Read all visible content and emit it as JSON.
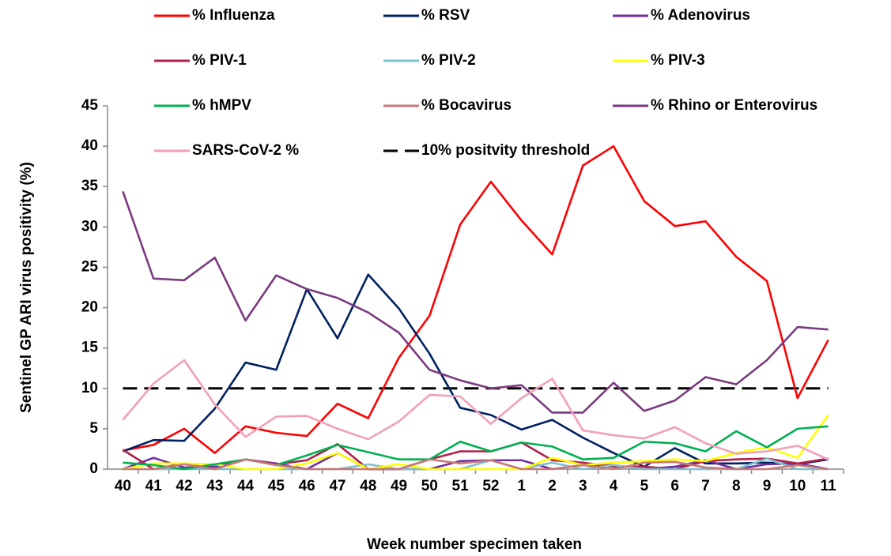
{
  "chart_data": {
    "type": "line",
    "y_label": "Sentinel GP ARI virus positivity (%)",
    "x_label": "Week number specimen taken",
    "categories": [
      "40",
      "41",
      "42",
      "43",
      "44",
      "45",
      "46",
      "47",
      "48",
      "49",
      "50",
      "51",
      "52",
      "1",
      "2",
      "3",
      "4",
      "5",
      "6",
      "7",
      "8",
      "9",
      "10",
      "11"
    ],
    "ylim": [
      0,
      45
    ],
    "yticks": [
      0,
      5,
      10,
      15,
      20,
      25,
      30,
      35,
      40,
      45
    ],
    "series": [
      {
        "name": "% Influenza",
        "color": "#ff0000",
        "values": [
          2.3,
          3,
          5,
          2,
          5.3,
          4.5,
          4.1,
          8.1,
          6.3,
          13.8,
          19,
          30.3,
          35.6,
          30.8,
          26.6,
          37.6,
          40,
          33.2,
          30.1,
          30.7,
          26.3,
          23.3,
          8.8,
          16
        ]
      },
      {
        "name": "% RSV",
        "color": "#002060",
        "values": [
          2.2,
          3.6,
          3.5,
          7.5,
          13.2,
          12.3,
          22.3,
          16.2,
          24.1,
          19.9,
          14.3,
          7.6,
          6.7,
          4.9,
          6.1,
          3.9,
          2,
          0.3,
          2.6,
          0.7,
          0.7,
          0.8,
          0.6,
          1.2
        ]
      },
      {
        "name": "% Adenovirus",
        "color": "#7030a0",
        "values": [
          0,
          1.4,
          0.2,
          0.3,
          1.2,
          0.7,
          0,
          2,
          0,
          0,
          0,
          1,
          1.1,
          1.1,
          0,
          0.5,
          0.5,
          0,
          0.3,
          1.1,
          0,
          0.6,
          0.7,
          0
        ]
      },
      {
        "name": "% PIV-1",
        "color": "#b0204a",
        "values": [
          2.4,
          0,
          0.7,
          0,
          1.2,
          0.6,
          1.1,
          3.1,
          0,
          0,
          1.2,
          2.2,
          2.2,
          3.3,
          1.1,
          0.8,
          0.3,
          0.3,
          0,
          1,
          1.2,
          1.3,
          0.7,
          1.3
        ]
      },
      {
        "name": "% PIV-2",
        "color": "#7fc0d0",
        "values": [
          0,
          0,
          0,
          0,
          0,
          0,
          0,
          0,
          0.6,
          0,
          0,
          0,
          1.1,
          0,
          0.8,
          0,
          0.5,
          0,
          0,
          0,
          0,
          1.3,
          0,
          0
        ]
      },
      {
        "name": "% PIV-3",
        "color": "#ffff00",
        "values": [
          0,
          0.7,
          0.7,
          0.6,
          0,
          0,
          0.7,
          2,
          0,
          0.6,
          0,
          0,
          0,
          0,
          1.4,
          0.5,
          0.8,
          1,
          1.2,
          1,
          2,
          2.7,
          1.4,
          6.7
        ]
      },
      {
        "name": "% hMPV",
        "color": "#00b050",
        "values": [
          0.8,
          0.5,
          0,
          0.6,
          1.2,
          0.5,
          1.7,
          3,
          2.1,
          1.2,
          1.2,
          3.4,
          2.2,
          3.3,
          2.8,
          1.2,
          1.4,
          3.4,
          3.2,
          2.2,
          4.7,
          2.7,
          5,
          5.3
        ]
      },
      {
        "name": "% Bocavirus",
        "color": "#c87878",
        "values": [
          0,
          0,
          0.6,
          0,
          1.2,
          0.5,
          0,
          0,
          0,
          0,
          1.2,
          0.7,
          1.1,
          0,
          0,
          0.5,
          0,
          0.8,
          0.9,
          0.2,
          0,
          0,
          0.5,
          0
        ]
      },
      {
        "name": "% Rhino or Enterovirus",
        "color": "#7a3a80",
        "values": [
          34.4,
          23.6,
          23.4,
          26.2,
          18.4,
          24,
          22.3,
          21.2,
          19.4,
          16.9,
          12.3,
          11,
          10,
          10.4,
          7,
          7,
          10.7,
          7.2,
          8.5,
          11.4,
          10.5,
          13.5,
          17.6,
          17.3
        ]
      },
      {
        "name": "SARS-CoV-2 %",
        "color": "#f2a0b8",
        "values": [
          6.1,
          10.6,
          13.5,
          8,
          4,
          6.5,
          6.6,
          5,
          3.7,
          5.9,
          9.2,
          9,
          5.6,
          8.8,
          11.2,
          4.8,
          4.2,
          3.8,
          5.2,
          3.2,
          1.9,
          2.2,
          2.9,
          1.2
        ]
      }
    ],
    "threshold": {
      "name": "10% positvity threshold",
      "value": 10,
      "color": "#000000"
    }
  }
}
